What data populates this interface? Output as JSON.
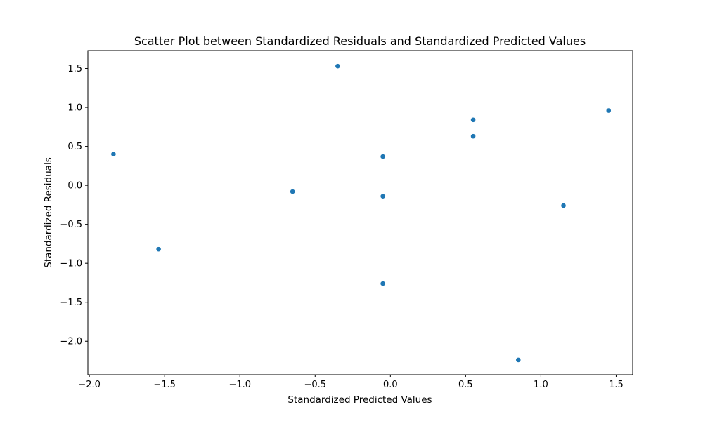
{
  "chart_data": {
    "type": "scatter",
    "title": "Scatter Plot between Standardized Residuals and Standardized Predicted Values",
    "xlabel": "Standardized Predicted Values",
    "ylabel": "Standardized Residuals",
    "xlim": [
      -2.01,
      1.61
    ],
    "ylim": [
      -2.43,
      1.73
    ],
    "xticks": [
      -2.0,
      -1.5,
      -1.0,
      -0.5,
      0.0,
      0.5,
      1.0,
      1.5
    ],
    "xtick_labels": [
      "−2.0",
      "−1.5",
      "−1.0",
      "−0.5",
      "0.0",
      "0.5",
      "1.0",
      "1.5"
    ],
    "yticks": [
      -2.0,
      -1.5,
      -1.0,
      -0.5,
      0.0,
      0.5,
      1.0,
      1.5
    ],
    "ytick_labels": [
      "−2.0",
      "−1.5",
      "−1.0",
      "−0.5",
      "0.0",
      "0.5",
      "1.0",
      "1.5"
    ],
    "grid": false,
    "marker_color": "#1f77b4",
    "points": [
      {
        "x": -1.84,
        "y": 0.4
      },
      {
        "x": -1.54,
        "y": -0.82
      },
      {
        "x": -0.65,
        "y": -0.08
      },
      {
        "x": -0.35,
        "y": 1.53
      },
      {
        "x": -0.05,
        "y": 0.37
      },
      {
        "x": -0.05,
        "y": -0.14
      },
      {
        "x": -0.05,
        "y": -1.26
      },
      {
        "x": 0.55,
        "y": 0.84
      },
      {
        "x": 0.55,
        "y": 0.63
      },
      {
        "x": 0.85,
        "y": -2.24
      },
      {
        "x": 1.15,
        "y": -0.26
      },
      {
        "x": 1.45,
        "y": 0.96
      }
    ]
  }
}
